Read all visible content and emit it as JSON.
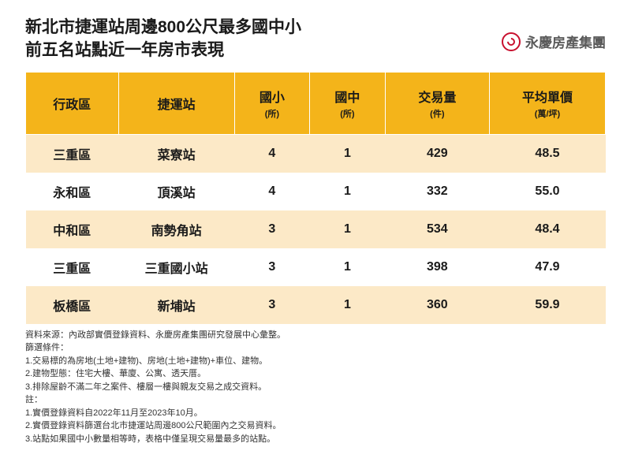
{
  "title": {
    "line1": "新北市捷運站周邊800公尺最多國中小",
    "line2": "前五名站點近一年房市表現"
  },
  "logo": {
    "text": "永慶房產集團"
  },
  "table": {
    "columns": [
      {
        "label": "行政區",
        "sub": ""
      },
      {
        "label": "捷運站",
        "sub": ""
      },
      {
        "label": "國小",
        "sub": "(所)"
      },
      {
        "label": "國中",
        "sub": "(所)"
      },
      {
        "label": "交易量",
        "sub": "(件)"
      },
      {
        "label": "平均單價",
        "sub": "(萬/坪)"
      }
    ],
    "rows": [
      {
        "district": "三重區",
        "station": "菜寮站",
        "es": "4",
        "jh": "1",
        "vol": "429",
        "price": "48.5"
      },
      {
        "district": "永和區",
        "station": "頂溪站",
        "es": "4",
        "jh": "1",
        "vol": "332",
        "price": "55.0"
      },
      {
        "district": "中和區",
        "station": "南勢角站",
        "es": "3",
        "jh": "1",
        "vol": "534",
        "price": "48.4"
      },
      {
        "district": "三重區",
        "station": "三重國小站",
        "es": "3",
        "jh": "1",
        "vol": "398",
        "price": "47.9"
      },
      {
        "district": "板橋區",
        "station": "新埔站",
        "es": "3",
        "jh": "1",
        "vol": "360",
        "price": "59.9"
      }
    ]
  },
  "footnotes": {
    "l0": "資料來源：內政部實價登錄資料、永慶房產集團研究發展中心彙整。",
    "l1": "篩選條件：",
    "l2": "1.交易標的為房地(土地+建物)、房地(土地+建物)+車位、建物。",
    "l3": "2.建物型態：住宅大樓、華廈、公寓、透天厝。",
    "l4": "3.排除屋齡不滿二年之案件、樓層一樓與親友交易之成交資料。",
    "l5": "註：",
    "l6": "1.實價登錄資料自2022年11月至2023年10月。",
    "l7": "2.實價登錄資料篩選台北市捷運站周邊800公尺範圍內之交易資料。",
    "l8": "3.站點如果國中小數量相等時，表格中僅呈現交易量最多的站點。"
  },
  "style": {
    "header_bg": "#f4b41a",
    "row_odd_bg": "#fce9c7",
    "row_even_bg": "#ffffff",
    "text_color": "#1a1a1a",
    "logo_color": "#c8102e",
    "footnote_color": "#333333",
    "title_fontsize": 21,
    "header_fontsize": 16,
    "cell_fontsize": 16,
    "footnote_fontsize": 11
  }
}
